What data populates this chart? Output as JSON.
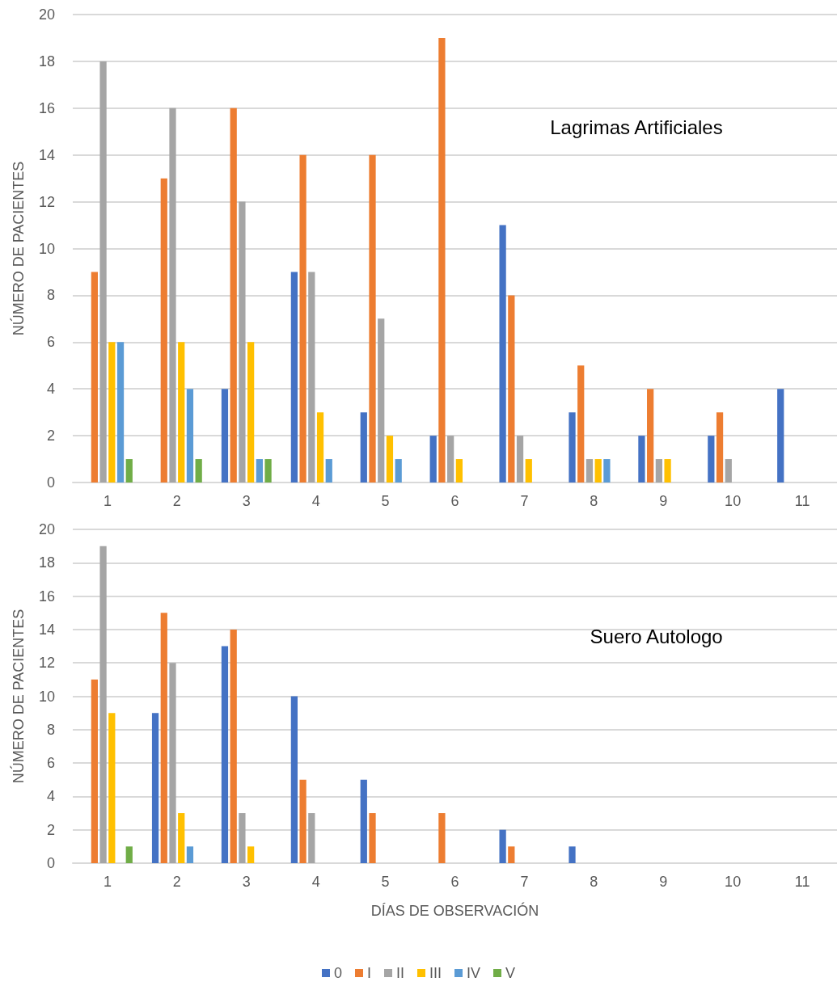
{
  "chart_data": [
    {
      "type": "bar",
      "title": "Lagrimas Artificiales",
      "ylabel": "NÚMERO DE PACIENTES",
      "categories": [
        "1",
        "2",
        "3",
        "4",
        "5",
        "6",
        "7",
        "8",
        "9",
        "10",
        "11"
      ],
      "series": [
        {
          "color": "#4472c4",
          "values": [
            0,
            0,
            4,
            9,
            3,
            2,
            11,
            3,
            2,
            2,
            4
          ]
        },
        {
          "color": "#ed7d31",
          "values": [
            9,
            13,
            16,
            14,
            14,
            19,
            8,
            5,
            4,
            3,
            0
          ]
        },
        {
          "color": "#a5a5a5",
          "values": [
            18,
            16,
            12,
            9,
            7,
            2,
            2,
            1,
            1,
            1,
            0
          ]
        },
        {
          "color": "#ffc000",
          "values": [
            6,
            6,
            6,
            3,
            2,
            1,
            1,
            1,
            1,
            0,
            0
          ]
        },
        {
          "color": "#5b9bd5",
          "values": [
            6,
            4,
            1,
            1,
            1,
            0,
            0,
            1,
            0,
            0,
            0
          ]
        },
        {
          "color": "#70ad47",
          "values": [
            1,
            1,
            1,
            0,
            0,
            0,
            0,
            0,
            0,
            0,
            0
          ]
        }
      ],
      "ylim": [
        0,
        20
      ],
      "yticks": [
        0,
        2,
        4,
        6,
        8,
        10,
        12,
        14,
        16,
        18,
        20
      ],
      "grid": "y",
      "legend": false
    },
    {
      "type": "bar",
      "title": "Suero Autologo",
      "ylabel": "NÚMERO DE PACIENTES",
      "xlabel": "DÍAS DE OBSERVACIÓN",
      "categories": [
        "1",
        "2",
        "3",
        "4",
        "5",
        "6",
        "7",
        "8",
        "9",
        "10",
        "11"
      ],
      "series": [
        {
          "name": "0",
          "color": "#4472c4",
          "values": [
            0,
            9,
            13,
            10,
            5,
            0,
            2,
            1,
            0,
            0,
            0
          ]
        },
        {
          "name": "I",
          "color": "#ed7d31",
          "values": [
            11,
            15,
            14,
            5,
            3,
            3,
            1,
            0,
            0,
            0,
            0
          ]
        },
        {
          "name": "II",
          "color": "#a5a5a5",
          "values": [
            19,
            12,
            3,
            3,
            0,
            0,
            0,
            0,
            0,
            0,
            0
          ]
        },
        {
          "name": "III",
          "color": "#ffc000",
          "values": [
            9,
            3,
            1,
            0,
            0,
            0,
            0,
            0,
            0,
            0,
            0
          ]
        },
        {
          "name": "IV",
          "color": "#5b9bd5",
          "values": [
            0,
            1,
            0,
            0,
            0,
            0,
            0,
            0,
            0,
            0,
            0
          ]
        },
        {
          "name": "V",
          "color": "#70ad47",
          "values": [
            1,
            0,
            0,
            0,
            0,
            0,
            0,
            0,
            0,
            0,
            0
          ]
        }
      ],
      "ylim": [
        0,
        20
      ],
      "yticks": [
        0,
        2,
        4,
        6,
        8,
        10,
        12,
        14,
        16,
        18,
        20
      ],
      "grid": "y",
      "legend": "bottom"
    }
  ]
}
